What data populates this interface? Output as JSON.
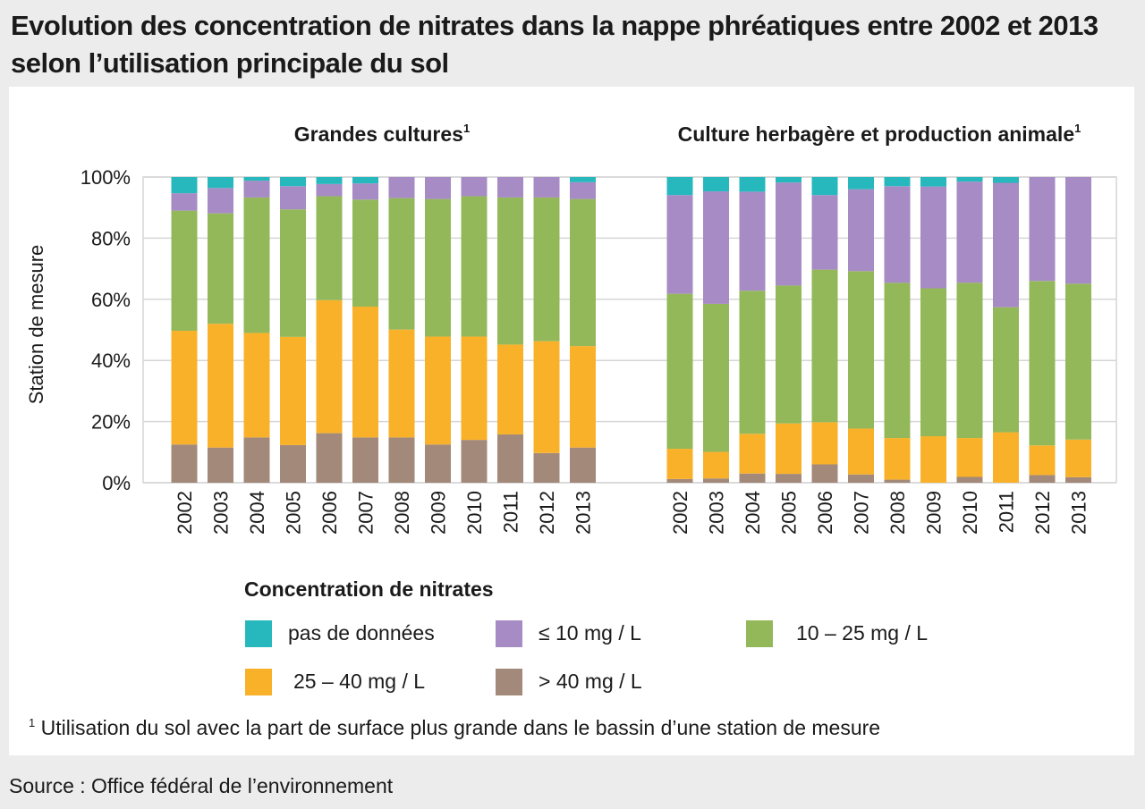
{
  "title": "Evolution des concentration de nitrates dans la nappe phréatiques entre 2002 et 2013 selon l’utilisation principale du sol",
  "source": "Source : Office fédéral de l’environnement",
  "footnote": {
    "mark": "1",
    "text": " Utilisation du sol avec la part de surface plus grande dans le bassin d’une station de mesure"
  },
  "legend": {
    "title": "Concentration de nitrates",
    "items": [
      {
        "label": "pas de données",
        "color": "#27b8bd"
      },
      {
        "label": "≤ 10 mg / L",
        "color": "#a68bc4"
      },
      {
        "label": "10 – 25 mg / L",
        "color": "#93b859"
      },
      {
        "label": "25 – 40 mg / L",
        "color": "#f9b12a"
      },
      {
        "label": "> 40 mg / L",
        "color": "#a3897a"
      }
    ]
  },
  "chart_data": {
    "type": "bar",
    "stacked": true,
    "ylabel": "Station de mesure",
    "ylim": [
      0,
      100
    ],
    "yticks": [
      "0%",
      "20%",
      "40%",
      "60%",
      "80%",
      "100%"
    ],
    "grid": true,
    "legend_position": "bottom",
    "categories": [
      "2002",
      "2003",
      "2004",
      "2005",
      "2006",
      "2007",
      "2008",
      "2009",
      "2010",
      "2011",
      "2012",
      "2013"
    ],
    "panels": [
      {
        "title": "Grandes cultures",
        "title_sup": "1",
        "series": [
          {
            "name": "> 40 mg / L",
            "color": "#a3897a",
            "values": [
              12.5,
              11.5,
              14.8,
              12.3,
              16.2,
              14.8,
              14.8,
              12.5,
              14.0,
              15.8,
              9.7,
              11.5
            ]
          },
          {
            "name": "25 – 40 mg / L",
            "color": "#f9b12a",
            "values": [
              37.2,
              40.5,
              34.2,
              35.4,
              43.5,
              42.8,
              35.3,
              35.3,
              33.8,
              29.4,
              36.6,
              33.2
            ]
          },
          {
            "name": "10 – 25 mg / L",
            "color": "#93b859",
            "values": [
              39.3,
              36.1,
              44.3,
              41.7,
              34.0,
              35.0,
              43.0,
              45.0,
              45.9,
              48.1,
              47.0,
              48.1
            ]
          },
          {
            "name": "≤ 10 mg / L",
            "color": "#a68bc4",
            "values": [
              5.7,
              8.3,
              5.5,
              7.6,
              4.0,
              5.3,
              6.9,
              7.2,
              6.3,
              6.7,
              6.7,
              5.5
            ]
          },
          {
            "name": "pas de données",
            "color": "#27b8bd",
            "values": [
              5.3,
              3.6,
              1.2,
              3.0,
              2.3,
              2.1,
              0.0,
              0.0,
              0.0,
              0.0,
              0.0,
              1.7
            ]
          }
        ]
      },
      {
        "title": "Culture herbagère et production animale",
        "title_sup": "1",
        "series": [
          {
            "name": "> 40 mg / L",
            "color": "#a3897a",
            "values": [
              1.2,
              1.4,
              3.0,
              2.9,
              6.0,
              2.7,
              1.0,
              0.0,
              1.9,
              0.0,
              2.5,
              1.8
            ]
          },
          {
            "name": "25 – 40 mg / L",
            "color": "#f9b12a",
            "values": [
              9.9,
              8.7,
              13.0,
              16.5,
              13.8,
              15.0,
              13.6,
              15.2,
              12.7,
              16.5,
              9.7,
              12.3
            ]
          },
          {
            "name": "10 – 25 mg / L",
            "color": "#93b859",
            "values": [
              50.7,
              48.4,
              46.8,
              45.1,
              49.9,
              51.5,
              50.8,
              48.4,
              50.8,
              40.9,
              53.8,
              51.0
            ]
          },
          {
            "name": "≤ 10 mg / L",
            "color": "#a68bc4",
            "values": [
              32.3,
              36.8,
              32.4,
              33.7,
              24.4,
              26.8,
              31.6,
              33.3,
              33.1,
              40.7,
              34.0,
              34.9
            ]
          },
          {
            "name": "pas de données",
            "color": "#27b8bd",
            "values": [
              5.9,
              4.7,
              4.8,
              1.8,
              5.9,
              4.0,
              3.0,
              3.1,
              1.5,
              1.9,
              0.0,
              0.0
            ]
          }
        ]
      }
    ]
  }
}
